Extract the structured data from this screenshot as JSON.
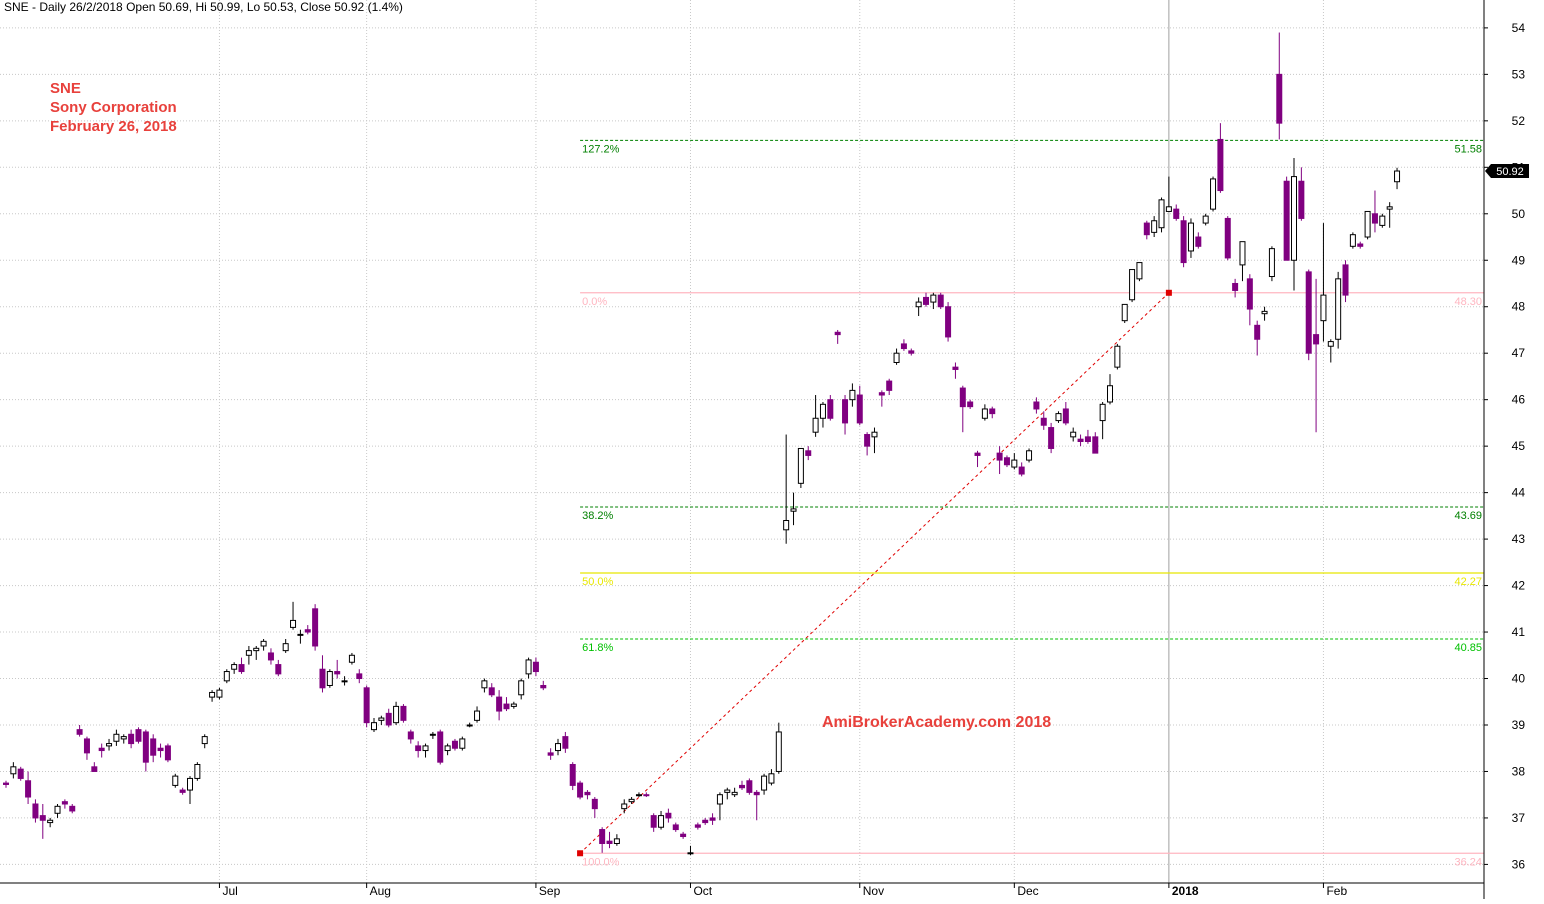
{
  "header": {
    "title": "SNE - Daily 26/2/2018 Open 50.69, Hi 50.99, Lo 50.53, Close 50.92 (1.4%)"
  },
  "annotation": {
    "ticker": "SNE",
    "company": "Sony Corporation",
    "date": "February 26, 2018"
  },
  "watermark": "AmiBrokerAcademy.com  2018",
  "colors": {
    "up_fill": "#ffffff",
    "down_fill": "#800080",
    "candle_stroke": "#000000",
    "fib_green": "#008000",
    "fib_bright_green": "#00c000",
    "fib_pink": "#ffb6c1",
    "fib_yellow": "#e8e800",
    "trend_line": "#e00000",
    "annotation": "#e8413c"
  },
  "chart_data": {
    "type": "candlestick",
    "y_axis": {
      "min": 35.6,
      "max": 54.6,
      "side": "right",
      "ticks": [
        "36",
        "37",
        "38",
        "39",
        "40",
        "41",
        "42",
        "43",
        "44",
        "45",
        "46",
        "47",
        "48",
        "49",
        "50",
        "51",
        "52",
        "53",
        "54"
      ]
    },
    "x_axis": {
      "labels": [
        {
          "text": "Jul",
          "index": 29
        },
        {
          "text": "Aug",
          "index": 49
        },
        {
          "text": "Sep",
          "index": 72
        },
        {
          "text": "Oct",
          "index": 93
        },
        {
          "text": "Nov",
          "index": 116
        },
        {
          "text": "Dec",
          "index": 137
        },
        {
          "text": "2018",
          "index": 158
        },
        {
          "text": "Feb",
          "index": 179
        }
      ]
    },
    "last_price": {
      "value": 50.92,
      "label": "50.92"
    },
    "fibonacci": [
      {
        "label": "127.2%",
        "price": 51.58,
        "price_label": "51.58",
        "color": "#008000",
        "style": "dashed"
      },
      {
        "label": "0.0%",
        "price": 48.3,
        "price_label": "48.30",
        "color": "#ffb6c1",
        "style": "solid"
      },
      {
        "label": "38.2%",
        "price": 43.69,
        "price_label": "43.69",
        "color": "#008000",
        "style": "dashed"
      },
      {
        "label": "50.0%",
        "price": 42.27,
        "price_label": "42.27",
        "color": "#e8e800",
        "style": "solid"
      },
      {
        "label": "61.8%",
        "price": 40.85,
        "price_label": "40.85",
        "color": "#00c000",
        "style": "dashed"
      },
      {
        "label": "100.0%",
        "price": 36.24,
        "price_label": "36.24",
        "color": "#ffb6c1",
        "style": "solid"
      }
    ],
    "fib_trend": {
      "from": {
        "index": 78,
        "price": 36.24
      },
      "to": {
        "index": 158,
        "price": 48.3
      }
    },
    "candles": [
      [
        37.75,
        37.8,
        37.65,
        37.72
      ],
      [
        37.95,
        38.2,
        37.85,
        38.1
      ],
      [
        38.05,
        38.1,
        37.8,
        37.85
      ],
      [
        37.8,
        38.0,
        37.3,
        37.45
      ],
      [
        37.3,
        37.4,
        36.9,
        37.0
      ],
      [
        37.05,
        37.3,
        36.55,
        36.95
      ],
      [
        36.9,
        37.0,
        36.8,
        36.95
      ],
      [
        37.1,
        37.3,
        37.0,
        37.25
      ],
      [
        37.35,
        37.4,
        37.2,
        37.3
      ],
      [
        37.25,
        37.3,
        37.1,
        37.15
      ],
      [
        38.9,
        39.0,
        38.75,
        38.8
      ],
      [
        38.7,
        38.75,
        38.25,
        38.4
      ],
      [
        38.1,
        38.2,
        38.0,
        38.0
      ],
      [
        38.5,
        38.6,
        38.3,
        38.45
      ],
      [
        38.55,
        38.7,
        38.45,
        38.6
      ],
      [
        38.65,
        38.9,
        38.55,
        38.8
      ],
      [
        38.7,
        38.8,
        38.6,
        38.75
      ],
      [
        38.8,
        38.9,
        38.5,
        38.6
      ],
      [
        38.9,
        38.95,
        38.6,
        38.65
      ],
      [
        38.85,
        38.9,
        38.0,
        38.2
      ],
      [
        38.7,
        38.8,
        38.2,
        38.35
      ],
      [
        38.5,
        38.6,
        38.3,
        38.45
      ],
      [
        38.55,
        38.6,
        38.2,
        38.25
      ],
      [
        37.7,
        37.95,
        37.65,
        37.9
      ],
      [
        37.6,
        37.65,
        37.5,
        37.55
      ],
      [
        37.6,
        37.9,
        37.3,
        37.85
      ],
      [
        37.85,
        38.2,
        37.8,
        38.15
      ],
      [
        38.6,
        38.8,
        38.5,
        38.75
      ],
      [
        39.6,
        39.75,
        39.5,
        39.7
      ],
      [
        39.6,
        39.8,
        39.55,
        39.75
      ],
      [
        39.95,
        40.2,
        39.9,
        40.15
      ],
      [
        40.2,
        40.35,
        40.1,
        40.3
      ],
      [
        40.3,
        40.45,
        40.1,
        40.15
      ],
      [
        40.5,
        40.7,
        40.3,
        40.6
      ],
      [
        40.6,
        40.7,
        40.4,
        40.65
      ],
      [
        40.7,
        40.85,
        40.6,
        40.8
      ],
      [
        40.55,
        40.65,
        40.3,
        40.4
      ],
      [
        40.3,
        40.4,
        40.05,
        40.1
      ],
      [
        40.6,
        40.85,
        40.55,
        40.75
      ],
      [
        41.1,
        41.65,
        41.05,
        41.25
      ],
      [
        40.95,
        41.05,
        40.75,
        40.95
      ],
      [
        41.05,
        41.15,
        40.95,
        41.0
      ],
      [
        41.5,
        41.6,
        40.6,
        40.7
      ],
      [
        40.2,
        40.5,
        39.7,
        39.8
      ],
      [
        39.85,
        40.2,
        39.8,
        40.15
      ],
      [
        40.15,
        40.4,
        40.0,
        40.1
      ],
      [
        39.95,
        40.05,
        39.85,
        39.95
      ],
      [
        40.35,
        40.55,
        40.3,
        40.5
      ],
      [
        40.1,
        40.2,
        39.9,
        40.0
      ],
      [
        39.8,
        39.85,
        38.95,
        39.05
      ],
      [
        38.9,
        39.15,
        38.85,
        39.05
      ],
      [
        39.1,
        39.2,
        39.0,
        39.15
      ],
      [
        39.25,
        39.35,
        38.95,
        39.0
      ],
      [
        39.05,
        39.5,
        39.0,
        39.4
      ],
      [
        39.4,
        39.45,
        39.05,
        39.1
      ],
      [
        38.85,
        38.9,
        38.6,
        38.7
      ],
      [
        38.55,
        38.65,
        38.3,
        38.45
      ],
      [
        38.45,
        38.6,
        38.3,
        38.55
      ],
      [
        38.8,
        38.85,
        38.7,
        38.8
      ],
      [
        38.85,
        38.9,
        38.15,
        38.2
      ],
      [
        38.45,
        38.6,
        38.35,
        38.55
      ],
      [
        38.65,
        38.7,
        38.45,
        38.5
      ],
      [
        38.5,
        38.75,
        38.45,
        38.7
      ],
      [
        39.0,
        39.05,
        38.95,
        39.0
      ],
      [
        39.1,
        39.4,
        39.05,
        39.3
      ],
      [
        39.8,
        40.0,
        39.7,
        39.95
      ],
      [
        39.8,
        39.9,
        39.6,
        39.65
      ],
      [
        39.6,
        39.75,
        39.1,
        39.3
      ],
      [
        39.45,
        39.6,
        39.3,
        39.35
      ],
      [
        39.4,
        39.5,
        39.35,
        39.45
      ],
      [
        39.65,
        40.0,
        39.55,
        39.95
      ],
      [
        40.1,
        40.45,
        40.0,
        40.4
      ],
      [
        40.35,
        40.45,
        40.05,
        40.15
      ],
      [
        39.85,
        39.95,
        39.75,
        39.8
      ],
      [
        38.4,
        38.5,
        38.25,
        38.35
      ],
      [
        38.45,
        38.7,
        38.35,
        38.6
      ],
      [
        38.75,
        38.85,
        38.4,
        38.5
      ],
      [
        38.15,
        38.2,
        37.6,
        37.7
      ],
      [
        37.75,
        37.8,
        37.4,
        37.45
      ],
      [
        37.55,
        37.6,
        37.4,
        37.5
      ],
      [
        37.4,
        37.45,
        37.0,
        37.2
      ],
      [
        36.75,
        36.8,
        36.25,
        36.45
      ],
      [
        36.5,
        36.7,
        36.35,
        36.45
      ],
      [
        36.45,
        36.65,
        36.4,
        36.55
      ],
      [
        37.2,
        37.4,
        37.1,
        37.3
      ],
      [
        37.35,
        37.45,
        37.3,
        37.4
      ],
      [
        37.5,
        37.55,
        37.45,
        37.5
      ],
      [
        37.5,
        37.55,
        37.45,
        37.48
      ],
      [
        37.05,
        37.1,
        36.7,
        36.8
      ],
      [
        36.8,
        37.15,
        36.75,
        37.05
      ],
      [
        37.1,
        37.2,
        36.9,
        37.0
      ],
      [
        36.85,
        36.9,
        36.7,
        36.75
      ],
      [
        36.65,
        36.7,
        36.55,
        36.6
      ],
      [
        36.25,
        36.4,
        36.2,
        36.25
      ],
      [
        36.85,
        36.9,
        36.75,
        36.8
      ],
      [
        36.95,
        37.0,
        36.85,
        36.9
      ],
      [
        37.0,
        37.1,
        36.85,
        36.95
      ],
      [
        37.3,
        37.55,
        36.95,
        37.5
      ],
      [
        37.55,
        37.65,
        37.4,
        37.6
      ],
      [
        37.5,
        37.65,
        37.45,
        37.55
      ],
      [
        37.7,
        37.8,
        37.6,
        37.65
      ],
      [
        37.8,
        37.85,
        37.5,
        37.55
      ],
      [
        37.55,
        37.6,
        36.95,
        37.5
      ],
      [
        37.6,
        37.95,
        37.5,
        37.9
      ],
      [
        37.75,
        38.05,
        37.7,
        37.95
      ],
      [
        38.0,
        39.05,
        37.95,
        38.85
      ],
      [
        43.2,
        45.25,
        42.9,
        43.4
      ],
      [
        43.6,
        44.0,
        43.3,
        43.65
      ],
      [
        44.2,
        44.9,
        44.1,
        44.95
      ],
      [
        44.9,
        45.0,
        44.7,
        44.8
      ],
      [
        45.3,
        46.1,
        45.2,
        45.6
      ],
      [
        45.6,
        45.95,
        45.4,
        45.9
      ],
      [
        46.0,
        46.1,
        45.55,
        45.6
      ],
      [
        47.45,
        47.5,
        47.2,
        47.4
      ],
      [
        46.0,
        46.1,
        45.25,
        45.5
      ],
      [
        46.0,
        46.35,
        45.85,
        46.2
      ],
      [
        46.1,
        46.3,
        45.45,
        45.5
      ],
      [
        45.25,
        45.3,
        44.8,
        45.0
      ],
      [
        45.2,
        45.4,
        44.85,
        45.3
      ],
      [
        46.15,
        46.2,
        45.85,
        46.1
      ],
      [
        46.4,
        46.45,
        46.1,
        46.2
      ],
      [
        46.8,
        47.1,
        46.75,
        47.0
      ],
      [
        47.2,
        47.3,
        47.05,
        47.1
      ],
      [
        47.05,
        47.1,
        46.95,
        47.0
      ],
      [
        48.0,
        48.2,
        47.8,
        48.1
      ],
      [
        48.2,
        48.3,
        48.0,
        48.05
      ],
      [
        48.1,
        48.3,
        47.95,
        48.25
      ],
      [
        48.25,
        48.3,
        47.95,
        48.0
      ],
      [
        48.0,
        48.1,
        47.25,
        47.35
      ],
      [
        46.7,
        46.8,
        46.45,
        46.65
      ],
      [
        46.25,
        46.3,
        45.3,
        45.85
      ],
      [
        45.95,
        46.0,
        45.8,
        45.85
      ],
      [
        44.85,
        44.9,
        44.55,
        44.8
      ],
      [
        45.6,
        45.9,
        45.55,
        45.8
      ],
      [
        45.8,
        45.85,
        45.6,
        45.7
      ],
      [
        44.85,
        45.0,
        44.4,
        44.7
      ],
      [
        44.75,
        44.8,
        44.55,
        44.6
      ],
      [
        44.55,
        44.85,
        44.5,
        44.7
      ],
      [
        44.55,
        44.65,
        44.35,
        44.4
      ],
      [
        44.7,
        44.95,
        44.65,
        44.9
      ],
      [
        45.95,
        46.05,
        45.7,
        45.8
      ],
      [
        45.6,
        45.75,
        45.35,
        45.45
      ],
      [
        45.4,
        45.5,
        44.85,
        44.95
      ],
      [
        45.55,
        45.75,
        45.5,
        45.7
      ],
      [
        45.8,
        45.95,
        45.45,
        45.5
      ],
      [
        45.2,
        45.4,
        45.1,
        45.3
      ],
      [
        45.15,
        45.25,
        45.0,
        45.1
      ],
      [
        45.2,
        45.35,
        45.05,
        45.1
      ],
      [
        45.2,
        45.3,
        44.85,
        44.85
      ],
      [
        45.55,
        45.95,
        45.15,
        45.9
      ],
      [
        45.95,
        46.55,
        45.9,
        46.3
      ],
      [
        46.7,
        47.2,
        46.65,
        47.15
      ],
      [
        47.7,
        48.05,
        47.65,
        48.05
      ],
      [
        48.15,
        48.8,
        48.1,
        48.8
      ],
      [
        48.6,
        48.95,
        48.55,
        48.95
      ],
      [
        49.8,
        49.85,
        49.45,
        49.55
      ],
      [
        49.6,
        49.95,
        49.5,
        49.85
      ],
      [
        49.7,
        50.35,
        49.6,
        50.3
      ],
      [
        50.05,
        50.8,
        50.05,
        50.15
      ],
      [
        50.1,
        50.2,
        49.85,
        49.9
      ],
      [
        49.85,
        49.95,
        48.85,
        48.95
      ],
      [
        49.2,
        49.9,
        49.05,
        49.8
      ],
      [
        49.5,
        49.6,
        49.25,
        49.3
      ],
      [
        49.8,
        50.0,
        49.75,
        49.95
      ],
      [
        50.1,
        50.8,
        50.05,
        50.75
      ],
      [
        51.6,
        51.95,
        50.45,
        50.5
      ],
      [
        49.9,
        49.95,
        49.0,
        49.05
      ],
      [
        48.5,
        48.6,
        48.2,
        48.35
      ],
      [
        48.9,
        49.4,
        48.55,
        49.4
      ],
      [
        48.6,
        48.7,
        47.6,
        47.95
      ],
      [
        47.6,
        47.7,
        46.95,
        47.3
      ],
      [
        47.85,
        48.0,
        47.7,
        47.9
      ],
      [
        48.65,
        49.3,
        48.55,
        49.25
      ],
      [
        53.0,
        53.9,
        51.6,
        51.95
      ],
      [
        50.7,
        50.8,
        49.0,
        49.0
      ],
      [
        49.0,
        51.2,
        48.35,
        50.8
      ],
      [
        50.7,
        51.0,
        49.85,
        49.9
      ],
      [
        48.75,
        48.8,
        46.85,
        47.0
      ],
      [
        47.4,
        48.6,
        45.3,
        47.2
      ],
      [
        47.7,
        49.8,
        47.25,
        48.25
      ],
      [
        47.15,
        47.3,
        46.8,
        47.25
      ],
      [
        47.3,
        48.75,
        47.1,
        48.6
      ],
      [
        48.9,
        49.0,
        48.1,
        48.25
      ],
      [
        49.3,
        49.6,
        49.25,
        49.55
      ],
      [
        49.35,
        49.4,
        49.25,
        49.3
      ],
      [
        49.5,
        49.9,
        49.45,
        50.05
      ],
      [
        50.0,
        50.5,
        49.6,
        49.8
      ],
      [
        49.75,
        50.0,
        49.7,
        49.95
      ],
      [
        50.1,
        50.25,
        49.7,
        50.15
      ],
      [
        50.69,
        50.99,
        50.53,
        50.92
      ]
    ]
  }
}
